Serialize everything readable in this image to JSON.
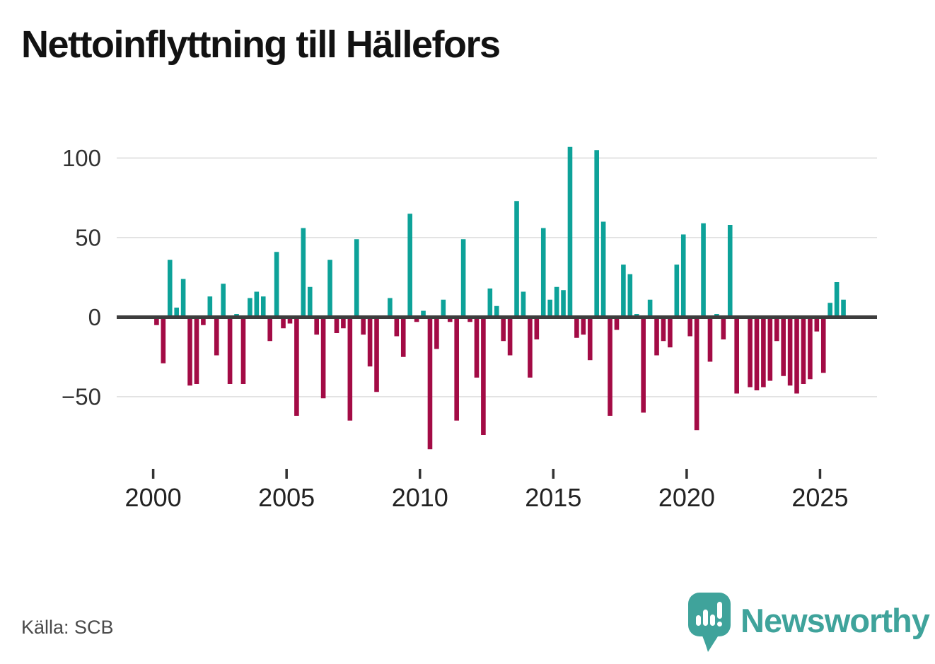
{
  "page": {
    "background": "#ffffff"
  },
  "header": {
    "title": "Nettoinflyttning till Hällefors"
  },
  "footer": {
    "source_label": "Källa: SCB",
    "brand_name": "Newsworthy",
    "brand_icon": "speech-bubble-bar-chart-icon"
  },
  "colors": {
    "positive": "#0da299",
    "negative": "#a30b45",
    "gridline": "#e3e3e3",
    "zero_line": "#3d3d3d",
    "axis_text": "#333333",
    "title_text": "#121212",
    "source_text": "#4a4a4a",
    "brand_teal": "#3fa39b"
  },
  "chart_data": {
    "type": "bar",
    "title": "Nettoinflyttning till Hällefors",
    "frequency": "quarterly",
    "start_period": "2000-Q1",
    "end_period": "2025-Q4",
    "grid": "horizontal",
    "legend": "none",
    "ylim": [
      -90,
      115
    ],
    "yticks": [
      100,
      50,
      0,
      -50
    ],
    "ytick_labels": [
      "100",
      "50",
      "0",
      "−50"
    ],
    "xticks": [
      2000,
      2005,
      2010,
      2015,
      2020,
      2025
    ],
    "positive_color": "#0da299",
    "negative_color": "#a30b45",
    "series": [
      {
        "name": "Nettoinflyttning",
        "values": [
          -5,
          -29,
          36,
          6,
          24,
          -43,
          -42,
          -5,
          13,
          -24,
          21,
          -42,
          2,
          -42,
          12,
          16,
          13,
          -15,
          41,
          -7,
          -4,
          -62,
          56,
          19,
          -11,
          -51,
          36,
          -10,
          -7,
          -65,
          49,
          -11,
          -31,
          -47,
          0,
          12,
          -12,
          -25,
          65,
          -3,
          4,
          -83,
          -20,
          11,
          -3,
          -65,
          49,
          -3,
          -38,
          -74,
          18,
          7,
          -15,
          -24,
          73,
          16,
          -38,
          -14,
          56,
          11,
          19,
          17,
          107,
          -13,
          -11,
          -27,
          105,
          60,
          -62,
          -8,
          33,
          27,
          2,
          -60,
          11,
          -24,
          -15,
          -19,
          33,
          52,
          -12,
          -71,
          59,
          -28,
          2,
          -14,
          58,
          -48,
          0,
          -44,
          -46,
          -44,
          -40,
          -15,
          -37,
          -43,
          -48,
          -42,
          -39,
          -9,
          -35,
          9,
          22,
          11
        ]
      }
    ]
  }
}
